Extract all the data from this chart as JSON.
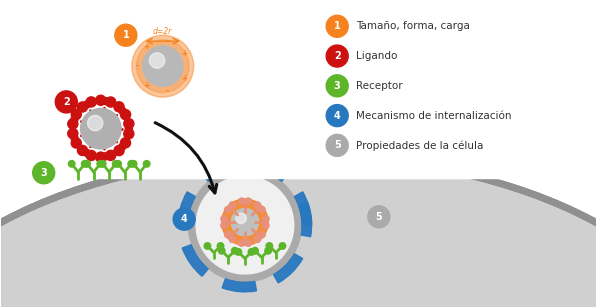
{
  "bg_color": "#ffffff",
  "orange_color": "#f5821f",
  "red_color": "#cc1111",
  "green_color": "#5db52a",
  "blue_color": "#2878c0",
  "gray_sphere": "#b8b8b8",
  "cell_gray": "#c8c8c8",
  "cell_dark": "#999999",
  "legend_items": [
    {
      "num": "1",
      "color": "#f5821f",
      "text": "Tamaño, forma, carga"
    },
    {
      "num": "2",
      "color": "#cc1111",
      "text": "Ligando"
    },
    {
      "num": "3",
      "color": "#5db52a",
      "text": "Receptor"
    },
    {
      "num": "4",
      "color": "#2878c0",
      "text": "Mecanismo de internalización"
    },
    {
      "num": "5",
      "color": "#aaaaaa",
      "text": "Propiedades de la célula"
    }
  ],
  "figsize": [
    5.97,
    3.08
  ],
  "dpi": 100
}
